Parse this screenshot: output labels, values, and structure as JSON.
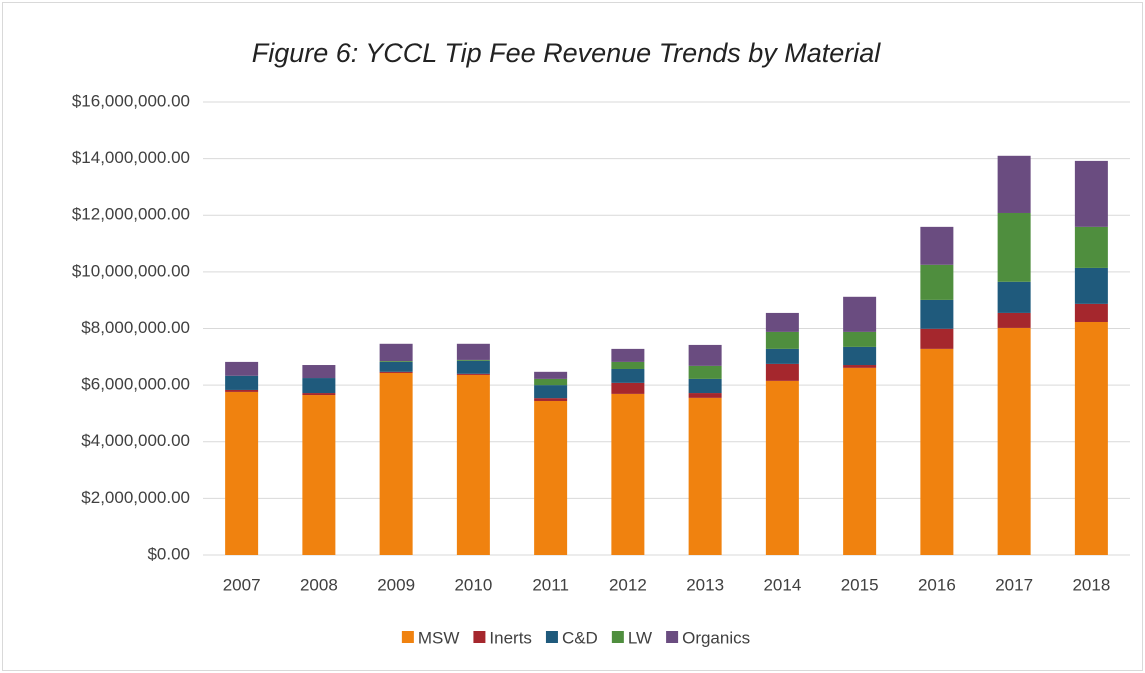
{
  "chart_data": {
    "type": "stacked_bar",
    "title": "Figure 6: YCCL Tip Fee Revenue Trends by Material",
    "categories": [
      "2007",
      "2008",
      "2009",
      "2010",
      "2011",
      "2012",
      "2013",
      "2014",
      "2015",
      "2016",
      "2017",
      "2018"
    ],
    "series": [
      {
        "name": "MSW",
        "color": "#f0820f",
        "values": [
          5760000,
          5650000,
          6430000,
          6360000,
          5440000,
          5690000,
          5550000,
          6150000,
          6610000,
          7280000,
          8020000,
          8230000
        ]
      },
      {
        "name": "Inerts",
        "color": "#a5272d",
        "values": [
          70000,
          70000,
          40000,
          40000,
          100000,
          390000,
          170000,
          600000,
          100000,
          710000,
          530000,
          640000
        ]
      },
      {
        "name": "C&D",
        "color": "#1f5a7c",
        "values": [
          500000,
          530000,
          350000,
          460000,
          460000,
          490000,
          500000,
          530000,
          640000,
          1020000,
          1100000,
          1270000
        ]
      },
      {
        "name": "LW",
        "color": "#4f8e3e",
        "values": [
          0,
          0,
          30000,
          30000,
          220000,
          250000,
          460000,
          600000,
          530000,
          1240000,
          2430000,
          1450000
        ]
      },
      {
        "name": "Organics",
        "color": "#6a4c80",
        "values": [
          490000,
          460000,
          610000,
          570000,
          250000,
          460000,
          740000,
          670000,
          1240000,
          1340000,
          2020000,
          2330000
        ]
      }
    ],
    "ylim": [
      0,
      16000000
    ],
    "yticks": [
      {
        "value": 0,
        "label": "$0.00"
      },
      {
        "value": 2000000,
        "label": "$2,000,000.00"
      },
      {
        "value": 4000000,
        "label": "$4,000,000.00"
      },
      {
        "value": 6000000,
        "label": "$6,000,000.00"
      },
      {
        "value": 8000000,
        "label": "$8,000,000.00"
      },
      {
        "value": 10000000,
        "label": "$10,000,000.00"
      },
      {
        "value": 12000000,
        "label": "$12,000,000.00"
      },
      {
        "value": 14000000,
        "label": "$14,000,000.00"
      },
      {
        "value": 16000000,
        "label": "$16,000,000.00"
      }
    ],
    "grid": true,
    "legend": "bottom"
  }
}
